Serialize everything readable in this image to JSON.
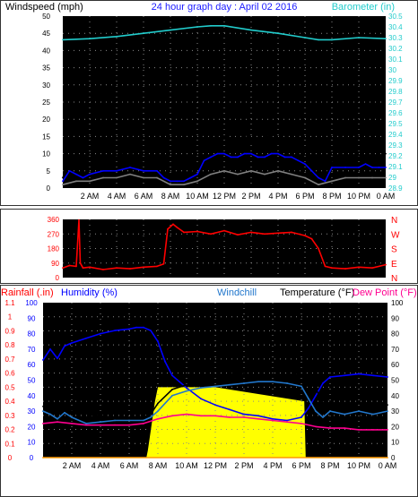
{
  "colors": {
    "background": "#ffffff",
    "plot_bg": "#000000",
    "grid": "#888888",
    "panel_border": "#333333",
    "black_text": "#000000",
    "title": "#1a1aff",
    "cyan": "#22cccc",
    "red": "#ff0000",
    "blue": "#0000ff",
    "windchill": "#2277cc",
    "magenta": "#ff0090",
    "yellow": "#ffff00",
    "orange": "#ff9900",
    "gray": "#808080"
  },
  "time_ticks": [
    "2 AM",
    "4 AM",
    "6 AM",
    "8 AM",
    "10 AM",
    "12 PM",
    "2 PM",
    "4 PM",
    "6 PM",
    "8 PM",
    "10 PM",
    "0 AM"
  ],
  "chart_data": [
    {
      "id": "wind",
      "type": "line",
      "title": "24 hour graph day : April 02 2016",
      "ylabel": "Windspeed (mph)",
      "ylabel_right": "Barometer (in)",
      "xlim": [
        0,
        24
      ],
      "ylim": [
        0,
        50
      ],
      "ylim_right": [
        28.9,
        30.5
      ],
      "y_ticks": [
        0,
        5,
        10,
        15,
        20,
        25,
        30,
        35,
        40,
        45,
        50
      ],
      "y_ticks_right": [
        "28.9",
        "29",
        "29.1",
        "29.2",
        "29.3",
        "29.4",
        "29.5",
        "29.6",
        "29.7",
        "29.8",
        "29.9",
        "30",
        "30.1",
        "30.2",
        "30.3",
        "30.4",
        "30.5"
      ],
      "grid": true,
      "series": [
        {
          "name": "",
          "color": "#000000",
          "x": [
            0,
            0.5,
            1,
            1.5,
            2,
            3,
            4,
            5,
            6,
            7,
            7.5,
            8,
            8.5,
            9,
            9.5,
            10,
            10.5,
            11,
            11.5,
            12,
            12.5,
            13,
            13.5,
            14,
            14.5,
            15,
            15.5,
            16,
            16.5,
            17,
            17.5,
            18,
            18.5,
            19,
            19.5,
            20,
            21,
            22,
            22.5,
            23,
            23.5,
            24
          ],
          "y": [
            3,
            8,
            6,
            5,
            7,
            8,
            9,
            11,
            8,
            9,
            5,
            3,
            4,
            4,
            5,
            6,
            12,
            13,
            14,
            15,
            14,
            13,
            15,
            14,
            13,
            14,
            16,
            14,
            13,
            14,
            12,
            11,
            8,
            5,
            3,
            8,
            8,
            9,
            9,
            8,
            9,
            10
          ]
        },
        {
          "name": "",
          "color": "#0000ff",
          "x": [
            0,
            0.5,
            1,
            1.5,
            2,
            3,
            4,
            5,
            6,
            7,
            7.5,
            8,
            8.5,
            9,
            9.5,
            10,
            10.5,
            11,
            11.5,
            12,
            12.5,
            13,
            13.5,
            14,
            14.5,
            15,
            15.5,
            16,
            16.5,
            17,
            17.5,
            18,
            18.5,
            19,
            19.5,
            20,
            21,
            22,
            22.5,
            23,
            23.5,
            24
          ],
          "y": [
            2,
            5,
            4,
            3,
            4,
            5,
            5,
            6,
            5,
            5,
            3,
            2,
            2,
            2,
            3,
            4,
            8,
            9,
            10,
            10,
            9,
            9,
            10,
            10,
            9,
            9,
            10,
            10,
            9,
            9,
            8,
            7,
            5,
            3,
            2,
            6,
            6,
            6,
            7,
            6,
            6,
            6
          ]
        },
        {
          "name": "",
          "color": "#808080",
          "x": [
            0,
            1,
            2,
            3,
            4,
            5,
            6,
            7,
            8,
            9,
            10,
            11,
            12,
            13,
            14,
            15,
            16,
            17,
            18,
            19,
            20,
            21,
            22,
            23,
            24
          ],
          "y": [
            1,
            2,
            2,
            3,
            3,
            4,
            3,
            3,
            1,
            1,
            2,
            4,
            5,
            4,
            5,
            4,
            5,
            4,
            3,
            1,
            2,
            3,
            3,
            3,
            3
          ]
        },
        {
          "name": "",
          "color": "#22cccc",
          "axis": "right",
          "x": [
            0,
            2,
            4,
            6,
            8,
            10,
            11,
            12,
            14,
            16,
            18,
            19,
            20,
            22,
            24
          ],
          "y": [
            30.28,
            30.29,
            30.31,
            30.34,
            30.37,
            30.4,
            30.41,
            30.41,
            30.37,
            30.34,
            30.3,
            30.28,
            30.28,
            30.3,
            30.29
          ]
        }
      ]
    },
    {
      "id": "direction",
      "type": "line",
      "xlim": [
        0,
        24
      ],
      "ylim": [
        0,
        360
      ],
      "y_ticks": [
        0,
        90,
        180,
        270,
        360
      ],
      "right_labels": [
        "N",
        "W",
        "S",
        "E",
        "N"
      ],
      "grid": true,
      "series": [
        {
          "name": "",
          "color": "#ff0000",
          "x": [
            0,
            0.5,
            1,
            1.2,
            1.3,
            1.5,
            2,
            3,
            4,
            5,
            6,
            7,
            7.5,
            7.8,
            8.2,
            8.5,
            9,
            10,
            11,
            12,
            13,
            14,
            15,
            16,
            17,
            18,
            18.5,
            19,
            19.5,
            20,
            21,
            22,
            23,
            24
          ],
          "y": [
            60,
            75,
            70,
            355,
            90,
            60,
            65,
            50,
            60,
            55,
            65,
            70,
            85,
            300,
            330,
            310,
            280,
            285,
            270,
            290,
            265,
            280,
            270,
            275,
            280,
            260,
            240,
            180,
            70,
            60,
            55,
            65,
            60,
            80
          ]
        }
      ]
    },
    {
      "id": "temperature",
      "type": "line",
      "legend": [
        "Rainfall (.in)",
        "Humidity (%)",
        "Windchill",
        "Temperature (°F)",
        "Dew Point (°F)"
      ],
      "xlim": [
        0,
        24
      ],
      "ylim_rain": [
        0,
        1.1
      ],
      "ylim_humidity": [
        0,
        100
      ],
      "ylim_temp": [
        0,
        100
      ],
      "rain_ticks": [
        "0",
        "0.1",
        "0.2",
        "0.3",
        "0.4",
        "0.5",
        "0.6",
        "0.7",
        "0.8",
        "0.9",
        "1",
        "1.1"
      ],
      "humidity_ticks": [
        0,
        10,
        20,
        30,
        40,
        50,
        60,
        70,
        80,
        90,
        100
      ],
      "temp_ticks": [
        0,
        10,
        20,
        30,
        40,
        50,
        60,
        70,
        80,
        90,
        100
      ],
      "grid": true,
      "areas": [
        {
          "name": "",
          "color": "#ffff00",
          "x": [
            0,
            7.2,
            7.3,
            7.8,
            8,
            11,
            12,
            18.2,
            18.3,
            24
          ],
          "y": [
            0,
            0,
            0.05,
            0.4,
            0.5,
            0.5,
            0.5,
            0.4,
            0,
            0
          ]
        }
      ],
      "series": [
        {
          "name": "Humidity (%)",
          "color": "#0000ff",
          "axis": "humidity",
          "x": [
            0,
            0.5,
            1,
            1.5,
            2,
            3,
            4,
            5,
            6,
            6.5,
            7,
            7.5,
            8,
            8.5,
            9,
            10,
            11,
            12,
            13,
            14,
            15,
            16,
            17,
            18,
            18.5,
            19,
            19.5,
            20,
            21,
            22,
            23,
            24
          ],
          "y": [
            63,
            70,
            64,
            72,
            74,
            77,
            80,
            82,
            83,
            84,
            84,
            82,
            75,
            62,
            53,
            45,
            38,
            34,
            31,
            28,
            27,
            25,
            24,
            26,
            32,
            40,
            48,
            52,
            53,
            54,
            53,
            52
          ]
        },
        {
          "name": "Temperature (°F)",
          "color": "#000000",
          "axis": "temp",
          "x": [
            0,
            0.5,
            1,
            2,
            3,
            4,
            5,
            6,
            7,
            7.5,
            8,
            9,
            10,
            11,
            12,
            13,
            14,
            15,
            16,
            17,
            18,
            18.5,
            19,
            19.5,
            20,
            21,
            22,
            23,
            24
          ],
          "y": [
            33,
            36,
            32,
            30,
            28,
            27,
            26,
            26,
            26,
            28,
            35,
            44,
            47,
            50,
            52,
            54,
            55,
            56,
            56,
            56,
            54,
            50,
            44,
            37,
            34,
            33,
            33,
            34,
            34
          ]
        },
        {
          "name": "Windchill",
          "color": "#2277cc",
          "axis": "temp",
          "x": [
            0,
            0.5,
            1,
            1.5,
            2,
            3,
            4,
            5,
            6,
            7,
            7.5,
            8,
            9,
            10,
            11,
            12,
            13,
            14,
            15,
            16,
            17,
            18,
            18.5,
            19,
            19.5,
            20,
            21,
            22,
            23,
            24
          ],
          "y": [
            30,
            28,
            25,
            29,
            26,
            22,
            23,
            24,
            24,
            24,
            26,
            30,
            40,
            43,
            45,
            46,
            47,
            48,
            49,
            49,
            48,
            46,
            38,
            30,
            26,
            30,
            28,
            30,
            28,
            30
          ]
        },
        {
          "name": "Dew Point (°F)",
          "color": "#ff0090",
          "axis": "temp",
          "x": [
            0,
            1,
            2,
            3,
            4,
            5,
            6,
            7,
            8,
            9,
            10,
            11,
            12,
            13,
            14,
            15,
            16,
            17,
            18,
            19,
            20,
            21,
            22,
            23,
            24
          ],
          "y": [
            22,
            23,
            22,
            21,
            21,
            21,
            21,
            22,
            25,
            27,
            28,
            27,
            27,
            26,
            26,
            25,
            24,
            23,
            22,
            20,
            19,
            19,
            18,
            18,
            18
          ]
        },
        {
          "name": "Rainfall (.in)",
          "color": "#ff9900",
          "axis": "rain",
          "x": [
            0,
            24
          ],
          "y": [
            0,
            0
          ]
        }
      ]
    }
  ]
}
